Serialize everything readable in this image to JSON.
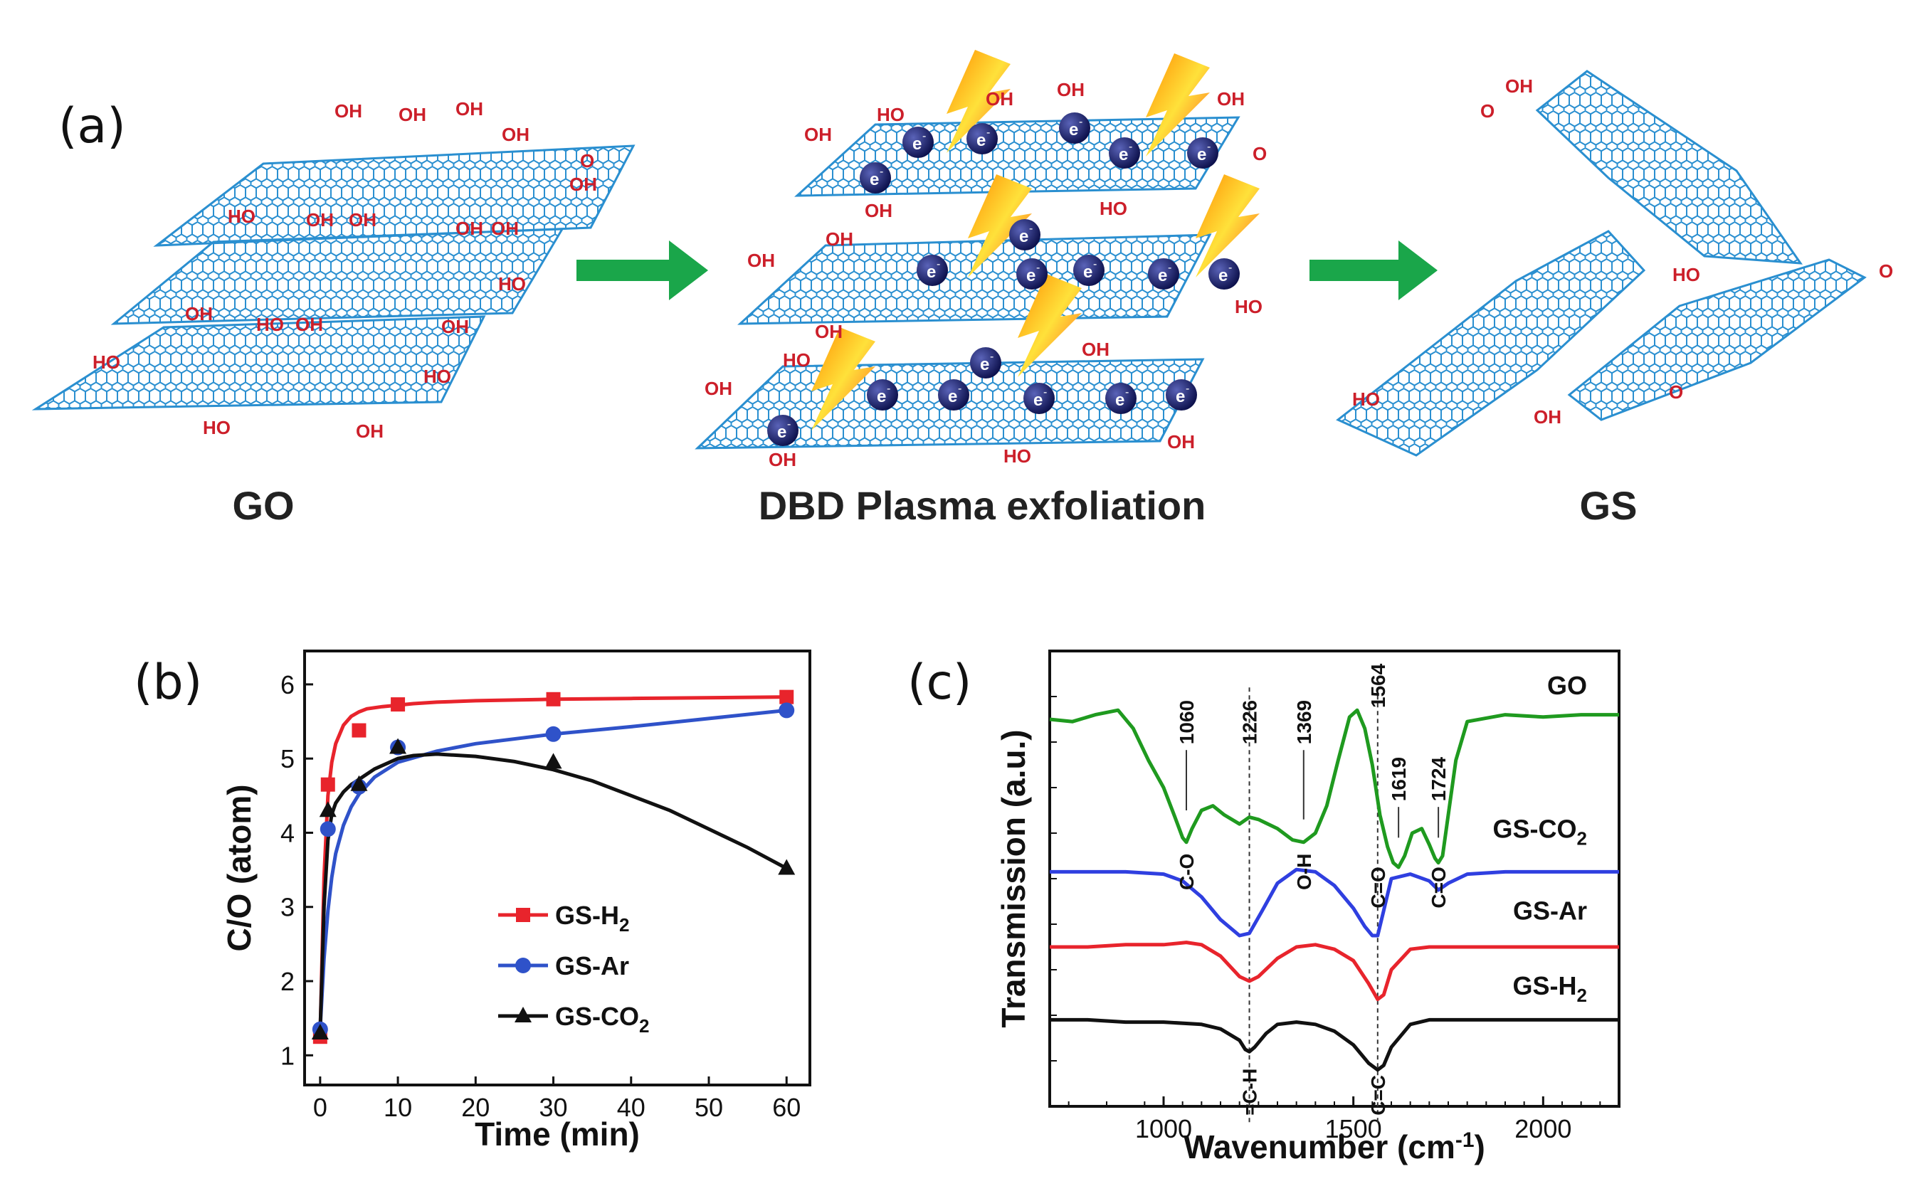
{
  "scheme": {
    "panel_letter": "(a)",
    "captions": [
      "GO",
      "DBD Plasma exfoliation",
      "GS"
    ],
    "electron_label": "e",
    "electron_sup": "-",
    "groups": {
      "oh": "OH",
      "ho": "HO",
      "o": "O"
    },
    "colors": {
      "sheet": "#2a8fd0",
      "group": "#cc1f2a",
      "arrow": "#1aa64a",
      "electron": "#0b0f4a",
      "bolt": "#f5d90a"
    }
  },
  "chart_data": [
    {
      "id": "b",
      "type": "line",
      "panel_letter": "(b)",
      "title": "",
      "xlabel": "Time (min)",
      "ylabel": "C/O (atom)",
      "xlim": [
        -2,
        63
      ],
      "ylim": [
        0.6,
        6.45
      ],
      "xticks": [
        0,
        10,
        20,
        30,
        40,
        50,
        60
      ],
      "yticks": [
        1,
        2,
        3,
        4,
        5,
        6
      ],
      "legend_position": "lower-center",
      "series": [
        {
          "name": "GS-H",
          "sub": "2",
          "color": "#e8242c",
          "marker": "square",
          "x": [
            0,
            1,
            5,
            10,
            30,
            60
          ],
          "y": [
            1.25,
            4.65,
            5.38,
            5.73,
            5.8,
            5.83
          ],
          "fit_x": [
            0,
            0.5,
            1,
            1.5,
            2,
            3,
            4,
            5,
            6,
            8,
            10,
            12,
            15,
            20,
            30,
            40,
            60
          ],
          "fit_y": [
            1.25,
            3.4,
            4.5,
            4.95,
            5.2,
            5.45,
            5.57,
            5.63,
            5.67,
            5.7,
            5.72,
            5.74,
            5.76,
            5.78,
            5.8,
            5.81,
            5.83
          ]
        },
        {
          "name": "GS-Ar",
          "sub": "",
          "color": "#2f52c9",
          "marker": "circle",
          "x": [
            0,
            1,
            5,
            10,
            30,
            60
          ],
          "y": [
            1.35,
            4.05,
            4.62,
            5.15,
            5.33,
            5.65
          ],
          "fit_x": [
            0,
            0.5,
            1,
            1.5,
            2,
            3,
            4,
            5,
            7,
            10,
            15,
            20,
            30,
            40,
            50,
            60
          ],
          "fit_y": [
            1.35,
            2.3,
            2.95,
            3.4,
            3.72,
            4.1,
            4.35,
            4.52,
            4.75,
            4.95,
            5.1,
            5.2,
            5.33,
            5.43,
            5.54,
            5.65
          ]
        },
        {
          "name": "GS-CO",
          "sub": "2",
          "color": "#111111",
          "marker": "triangle",
          "x": [
            0,
            1,
            5,
            10,
            30,
            60
          ],
          "y": [
            1.3,
            4.3,
            4.65,
            5.15,
            4.95,
            3.52
          ],
          "fit_x": [
            0,
            0.5,
            1,
            1.5,
            2,
            3,
            4,
            5,
            7,
            10,
            12,
            15,
            20,
            25,
            30,
            35,
            40,
            45,
            50,
            55,
            60
          ],
          "fit_y": [
            1.3,
            3.0,
            3.9,
            4.25,
            4.4,
            4.55,
            4.65,
            4.72,
            4.86,
            5.0,
            5.04,
            5.06,
            5.03,
            4.96,
            4.85,
            4.7,
            4.5,
            4.3,
            4.05,
            3.8,
            3.52
          ]
        }
      ]
    },
    {
      "id": "c",
      "type": "line",
      "panel_letter": "(c)",
      "title": "",
      "xlabel": "Wavenumber (cm",
      "xlabel_sup": "-1",
      "xlabel_end": ")",
      "ylabel": "Transmission (a.u.)",
      "xlim": [
        700,
        2200
      ],
      "ylim": [
        0,
        10
      ],
      "xticks": [
        1000,
        1500,
        2000
      ],
      "yticks": [],
      "reference_lines": [
        1226,
        1564
      ],
      "series": [
        {
          "name": "GO",
          "sub": "",
          "color": "#1f9a1f",
          "x": [
            700,
            760,
            820,
            880,
            920,
            960,
            1000,
            1030,
            1050,
            1060,
            1075,
            1100,
            1130,
            1160,
            1200,
            1226,
            1250,
            1300,
            1340,
            1369,
            1400,
            1430,
            1460,
            1490,
            1510,
            1530,
            1550,
            1570,
            1590,
            1605,
            1619,
            1635,
            1655,
            1680,
            1700,
            1715,
            1724,
            1735,
            1750,
            1770,
            1800,
            1900,
            2000,
            2100,
            2200
          ],
          "y": [
            8.5,
            8.45,
            8.6,
            8.7,
            8.3,
            7.6,
            7.0,
            6.35,
            5.9,
            5.8,
            6.1,
            6.5,
            6.6,
            6.4,
            6.2,
            6.35,
            6.3,
            6.1,
            5.85,
            5.8,
            6.0,
            6.6,
            7.6,
            8.55,
            8.7,
            8.3,
            7.5,
            6.4,
            5.7,
            5.35,
            5.25,
            5.5,
            6.0,
            6.1,
            5.75,
            5.45,
            5.35,
            5.5,
            6.4,
            7.6,
            8.45,
            8.6,
            8.55,
            8.6,
            8.6
          ]
        },
        {
          "name": "GS-CO",
          "sub": "2",
          "color": "#2f3fe0",
          "x": [
            700,
            800,
            900,
            1000,
            1050,
            1100,
            1150,
            1200,
            1226,
            1260,
            1300,
            1350,
            1400,
            1450,
            1500,
            1530,
            1550,
            1564,
            1580,
            1600,
            1650,
            1700,
            1724,
            1750,
            1800,
            1900,
            2000,
            2100,
            2200
          ],
          "y": [
            5.15,
            5.15,
            5.15,
            5.1,
            4.95,
            4.6,
            4.1,
            3.75,
            3.8,
            4.3,
            4.9,
            5.2,
            5.15,
            4.85,
            4.35,
            3.95,
            3.75,
            3.75,
            4.3,
            5.0,
            5.1,
            4.95,
            4.75,
            4.9,
            5.1,
            5.15,
            5.15,
            5.15,
            5.15
          ]
        },
        {
          "name": "GS-Ar",
          "sub": "",
          "color": "#e8242c",
          "x": [
            700,
            800,
            900,
            1000,
            1060,
            1100,
            1150,
            1200,
            1226,
            1250,
            1300,
            1350,
            1400,
            1450,
            1500,
            1540,
            1564,
            1580,
            1600,
            1650,
            1700,
            1800,
            1900,
            2000,
            2100,
            2200
          ],
          "y": [
            3.5,
            3.5,
            3.55,
            3.55,
            3.6,
            3.55,
            3.3,
            2.85,
            2.75,
            2.85,
            3.25,
            3.5,
            3.55,
            3.45,
            3.2,
            2.7,
            2.35,
            2.45,
            3.0,
            3.45,
            3.5,
            3.5,
            3.5,
            3.5,
            3.5,
            3.5
          ]
        },
        {
          "name": "GS-H",
          "sub": "2",
          "color": "#111111",
          "x": [
            700,
            800,
            900,
            1000,
            1100,
            1150,
            1200,
            1215,
            1226,
            1240,
            1270,
            1300,
            1350,
            1400,
            1450,
            1500,
            1540,
            1564,
            1580,
            1600,
            1650,
            1700,
            1800,
            1900,
            2000,
            2100,
            2200
          ],
          "y": [
            1.9,
            1.9,
            1.85,
            1.85,
            1.8,
            1.7,
            1.45,
            1.25,
            1.2,
            1.3,
            1.6,
            1.8,
            1.85,
            1.8,
            1.65,
            1.35,
            0.95,
            0.8,
            0.9,
            1.3,
            1.8,
            1.9,
            1.9,
            1.9,
            1.9,
            1.9,
            1.9
          ]
        }
      ],
      "peak_labels": [
        {
          "wavenumber": 1060,
          "y": 7.95,
          "text": "1060"
        },
        {
          "wavenumber": 1226,
          "y": 7.95,
          "text": "1226"
        },
        {
          "wavenumber": 1369,
          "y": 7.95,
          "text": "1369"
        },
        {
          "wavenumber": 1564,
          "y": 8.75,
          "text": "1564"
        },
        {
          "wavenumber": 1619,
          "y": 6.7,
          "text": "1619"
        },
        {
          "wavenumber": 1724,
          "y": 6.7,
          "text": "1724"
        }
      ],
      "bond_labels": [
        {
          "wavenumber": 1060,
          "y": 4.75,
          "text": "C-O"
        },
        {
          "wavenumber": 1369,
          "y": 4.75,
          "text": "O-H"
        },
        {
          "wavenumber": 1564,
          "y": 4.35,
          "text": "C=O"
        },
        {
          "wavenumber": 1724,
          "y": 4.35,
          "text": "C=O"
        },
        {
          "wavenumber": 1226,
          "y": -0.2,
          "text": "=C-H"
        },
        {
          "wavenumber": 1564,
          "y": -0.2,
          "text": "C=C"
        }
      ]
    }
  ]
}
